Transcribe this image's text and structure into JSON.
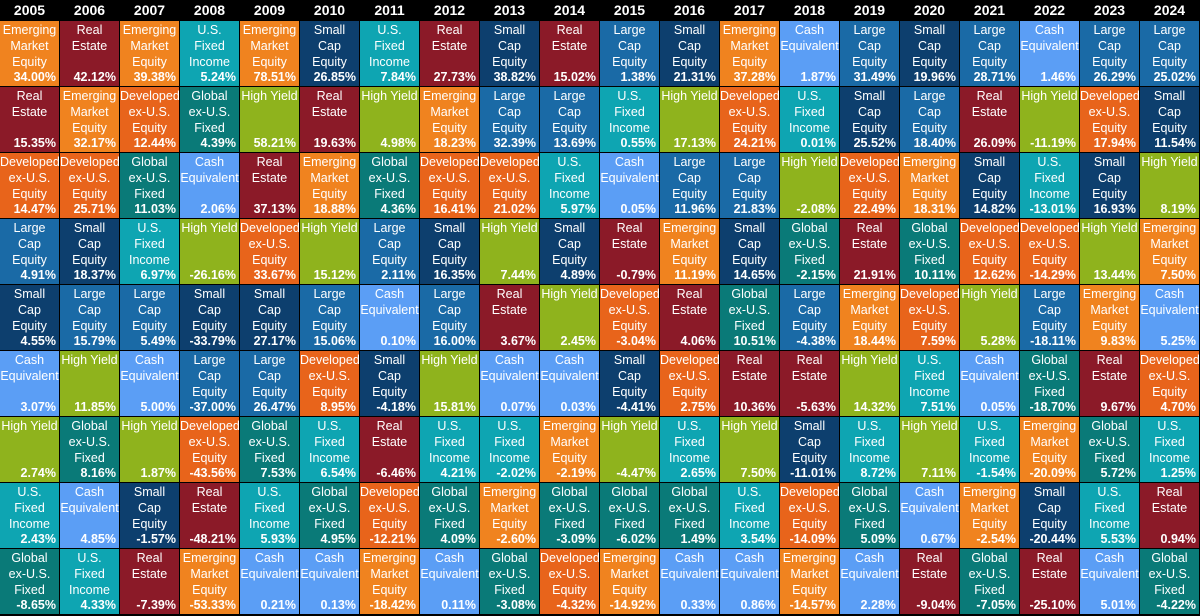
{
  "colors": {
    "Emerging Market Equity": "#f0831f",
    "Real Estate": "#8b1a28",
    "U.S. Fixed Income": "#0ea5b2",
    "Small Cap Equity": "#0d3f6e",
    "Large Cap Equity": "#1a6aa6",
    "Developed ex-U.S. Equity": "#e8641b",
    "Global ex-U.S. Fixed": "#0a7a78",
    "High Yield": "#8fb31d",
    "Cash Equivalent": "#5b9ef5"
  },
  "labels": {
    "Emerging Market Equity": "Emerging\nMarket\nEquity",
    "Real Estate": "Real\nEstate",
    "U.S. Fixed Income": "U.S.\nFixed\nIncome",
    "Small Cap Equity": "Small\nCap\nEquity",
    "Large Cap Equity": "Large\nCap\nEquity",
    "Developed ex-U.S. Equity": "Developed\nex-U.S.\nEquity",
    "Global ex-U.S. Fixed": "Global\nex-U.S.\nFixed",
    "High Yield": "High Yield",
    "Cash Equivalent": "Cash\nEquivalent"
  },
  "chart_data": {
    "type": "table",
    "years": [
      {
        "year": "2005",
        "cells": [
          {
            "asset": "Emerging Market Equity",
            "value": "34.00%"
          },
          {
            "asset": "Real Estate",
            "value": "15.35%"
          },
          {
            "asset": "Developed ex-U.S. Equity",
            "value": "14.47%"
          },
          {
            "asset": "Large Cap Equity",
            "value": "4.91%"
          },
          {
            "asset": "Small Cap Equity",
            "value": "4.55%"
          },
          {
            "asset": "Cash Equivalent",
            "value": "3.07%"
          },
          {
            "asset": "High Yield",
            "value": "2.74%"
          },
          {
            "asset": "U.S. Fixed Income",
            "value": "2.43%"
          },
          {
            "asset": "Global ex-U.S. Fixed",
            "value": "-8.65%"
          }
        ]
      },
      {
        "year": "2006",
        "cells": [
          {
            "asset": "Real Estate",
            "value": "42.12%"
          },
          {
            "asset": "Emerging Market Equity",
            "value": "32.17%"
          },
          {
            "asset": "Developed ex-U.S. Equity",
            "value": "25.71%"
          },
          {
            "asset": "Small Cap Equity",
            "value": "18.37%"
          },
          {
            "asset": "Large Cap Equity",
            "value": "15.79%"
          },
          {
            "asset": "High Yield",
            "value": "11.85%"
          },
          {
            "asset": "Global ex-U.S. Fixed",
            "value": "8.16%"
          },
          {
            "asset": "Cash Equivalent",
            "value": "4.85%"
          },
          {
            "asset": "U.S. Fixed Income",
            "value": "4.33%"
          }
        ]
      },
      {
        "year": "2007",
        "cells": [
          {
            "asset": "Emerging Market Equity",
            "value": "39.38%"
          },
          {
            "asset": "Developed ex-U.S. Equity",
            "value": "12.44%"
          },
          {
            "asset": "Global ex-U.S. Fixed",
            "value": "11.03%"
          },
          {
            "asset": "U.S. Fixed Income",
            "value": "6.97%"
          },
          {
            "asset": "Large Cap Equity",
            "value": "5.49%"
          },
          {
            "asset": "Cash Equivalent",
            "value": "5.00%"
          },
          {
            "asset": "High Yield",
            "value": "1.87%"
          },
          {
            "asset": "Small Cap Equity",
            "value": "-1.57%"
          },
          {
            "asset": "Real Estate",
            "value": "-7.39%"
          }
        ]
      },
      {
        "year": "2008",
        "cells": [
          {
            "asset": "U.S. Fixed Income",
            "value": "5.24%"
          },
          {
            "asset": "Global ex-U.S. Fixed",
            "value": "4.39%"
          },
          {
            "asset": "Cash Equivalent",
            "value": "2.06%"
          },
          {
            "asset": "High Yield",
            "value": "-26.16%"
          },
          {
            "asset": "Small Cap Equity",
            "value": "-33.79%"
          },
          {
            "asset": "Large Cap Equity",
            "value": "-37.00%"
          },
          {
            "asset": "Developed ex-U.S. Equity",
            "value": "-43.56%"
          },
          {
            "asset": "Real Estate",
            "value": "-48.21%"
          },
          {
            "asset": "Emerging Market Equity",
            "value": "-53.33%"
          }
        ]
      },
      {
        "year": "2009",
        "cells": [
          {
            "asset": "Emerging Market Equity",
            "value": "78.51%"
          },
          {
            "asset": "High Yield",
            "value": "58.21%"
          },
          {
            "asset": "Real Estate",
            "value": "37.13%"
          },
          {
            "asset": "Developed ex-U.S. Equity",
            "value": "33.67%"
          },
          {
            "asset": "Small Cap Equity",
            "value": "27.17%"
          },
          {
            "asset": "Large Cap Equity",
            "value": "26.47%"
          },
          {
            "asset": "Global ex-U.S. Fixed",
            "value": "7.53%"
          },
          {
            "asset": "U.S. Fixed Income",
            "value": "5.93%"
          },
          {
            "asset": "Cash Equivalent",
            "value": "0.21%"
          }
        ]
      },
      {
        "year": "2010",
        "cells": [
          {
            "asset": "Small Cap Equity",
            "value": "26.85%"
          },
          {
            "asset": "Real Estate",
            "value": "19.63%"
          },
          {
            "asset": "Emerging Market Equity",
            "value": "18.88%"
          },
          {
            "asset": "High Yield",
            "value": "15.12%"
          },
          {
            "asset": "Large Cap Equity",
            "value": "15.06%"
          },
          {
            "asset": "Developed ex-U.S. Equity",
            "value": "8.95%"
          },
          {
            "asset": "U.S. Fixed Income",
            "value": "6.54%"
          },
          {
            "asset": "Global ex-U.S. Fixed",
            "value": "4.95%"
          },
          {
            "asset": "Cash Equivalent",
            "value": "0.13%"
          }
        ]
      },
      {
        "year": "2011",
        "cells": [
          {
            "asset": "U.S. Fixed Income",
            "value": "7.84%"
          },
          {
            "asset": "High Yield",
            "value": "4.98%"
          },
          {
            "asset": "Global ex-U.S. Fixed",
            "value": "4.36%"
          },
          {
            "asset": "Large Cap Equity",
            "value": "2.11%"
          },
          {
            "asset": "Cash Equivalent",
            "value": "0.10%"
          },
          {
            "asset": "Small Cap Equity",
            "value": "-4.18%"
          },
          {
            "asset": "Real Estate",
            "value": "-6.46%"
          },
          {
            "asset": "Developed ex-U.S. Equity",
            "value": "-12.21%"
          },
          {
            "asset": "Emerging Market Equity",
            "value": "-18.42%"
          }
        ]
      },
      {
        "year": "2012",
        "cells": [
          {
            "asset": "Real Estate",
            "value": "27.73%"
          },
          {
            "asset": "Emerging Market Equity",
            "value": "18.23%"
          },
          {
            "asset": "Developed ex-U.S. Equity",
            "value": "16.41%"
          },
          {
            "asset": "Small Cap Equity",
            "value": "16.35%"
          },
          {
            "asset": "Large Cap Equity",
            "value": "16.00%"
          },
          {
            "asset": "High Yield",
            "value": "15.81%"
          },
          {
            "asset": "U.S. Fixed Income",
            "value": "4.21%"
          },
          {
            "asset": "Global ex-U.S. Fixed",
            "value": "4.09%"
          },
          {
            "asset": "Cash Equivalent",
            "value": "0.11%"
          }
        ]
      },
      {
        "year": "2013",
        "cells": [
          {
            "asset": "Small Cap Equity",
            "value": "38.82%"
          },
          {
            "asset": "Large Cap Equity",
            "value": "32.39%"
          },
          {
            "asset": "Developed ex-U.S. Equity",
            "value": "21.02%"
          },
          {
            "asset": "High Yield",
            "value": "7.44%"
          },
          {
            "asset": "Real Estate",
            "value": "3.67%"
          },
          {
            "asset": "Cash Equivalent",
            "value": "0.07%"
          },
          {
            "asset": "U.S. Fixed Income",
            "value": "-2.02%"
          },
          {
            "asset": "Emerging Market Equity",
            "value": "-2.60%"
          },
          {
            "asset": "Global ex-U.S. Fixed",
            "value": "-3.08%"
          }
        ]
      },
      {
        "year": "2014",
        "cells": [
          {
            "asset": "Real Estate",
            "value": "15.02%"
          },
          {
            "asset": "Large Cap Equity",
            "value": "13.69%"
          },
          {
            "asset": "U.S. Fixed Income",
            "value": "5.97%"
          },
          {
            "asset": "Small Cap Equity",
            "value": "4.89%"
          },
          {
            "asset": "High Yield",
            "value": "2.45%"
          },
          {
            "asset": "Cash Equivalent",
            "value": "0.03%"
          },
          {
            "asset": "Emerging Market Equity",
            "value": "-2.19%"
          },
          {
            "asset": "Global ex-U.S. Fixed",
            "value": "-3.09%"
          },
          {
            "asset": "Developed ex-U.S. Equity",
            "value": "-4.32%"
          }
        ]
      },
      {
        "year": "2015",
        "cells": [
          {
            "asset": "Large Cap Equity",
            "value": "1.38%"
          },
          {
            "asset": "U.S. Fixed Income",
            "value": "0.55%"
          },
          {
            "asset": "Cash Equivalent",
            "value": "0.05%"
          },
          {
            "asset": "Real Estate",
            "value": "-0.79%"
          },
          {
            "asset": "Developed ex-U.S. Equity",
            "value": "-3.04%"
          },
          {
            "asset": "Small Cap Equity",
            "value": "-4.41%"
          },
          {
            "asset": "High Yield",
            "value": "-4.47%"
          },
          {
            "asset": "Global ex-U.S. Fixed",
            "value": "-6.02%"
          },
          {
            "asset": "Emerging Market Equity",
            "value": "-14.92%"
          }
        ]
      },
      {
        "year": "2016",
        "cells": [
          {
            "asset": "Small Cap Equity",
            "value": "21.31%"
          },
          {
            "asset": "High Yield",
            "value": "17.13%"
          },
          {
            "asset": "Large Cap Equity",
            "value": "11.96%"
          },
          {
            "asset": "Emerging Market Equity",
            "value": "11.19%"
          },
          {
            "asset": "Real Estate",
            "value": "4.06%"
          },
          {
            "asset": "Developed ex-U.S. Equity",
            "value": "2.75%"
          },
          {
            "asset": "U.S. Fixed Income",
            "value": "2.65%"
          },
          {
            "asset": "Global ex-U.S. Fixed",
            "value": "1.49%"
          },
          {
            "asset": "Cash Equivalent",
            "value": "0.33%"
          }
        ]
      },
      {
        "year": "2017",
        "cells": [
          {
            "asset": "Emerging Market Equity",
            "value": "37.28%"
          },
          {
            "asset": "Developed ex-U.S. Equity",
            "value": "24.21%"
          },
          {
            "asset": "Large Cap Equity",
            "value": "21.83%"
          },
          {
            "asset": "Small Cap Equity",
            "value": "14.65%"
          },
          {
            "asset": "Global ex-U.S. Fixed",
            "value": "10.51%"
          },
          {
            "asset": "Real Estate",
            "value": "10.36%"
          },
          {
            "asset": "High Yield",
            "value": "7.50%"
          },
          {
            "asset": "U.S. Fixed Income",
            "value": "3.54%"
          },
          {
            "asset": "Cash Equivalent",
            "value": "0.86%"
          }
        ]
      },
      {
        "year": "2018",
        "cells": [
          {
            "asset": "Cash Equivalent",
            "value": "1.87%"
          },
          {
            "asset": "U.S. Fixed Income",
            "value": "0.01%"
          },
          {
            "asset": "High Yield",
            "value": "-2.08%"
          },
          {
            "asset": "Global ex-U.S. Fixed",
            "value": "-2.15%"
          },
          {
            "asset": "Large Cap Equity",
            "value": "-4.38%"
          },
          {
            "asset": "Real Estate",
            "value": "-5.63%"
          },
          {
            "asset": "Small Cap Equity",
            "value": "-11.01%"
          },
          {
            "asset": "Developed ex-U.S. Equity",
            "value": "-14.09%"
          },
          {
            "asset": "Emerging Market Equity",
            "value": "-14.57%"
          }
        ]
      },
      {
        "year": "2019",
        "cells": [
          {
            "asset": "Large Cap Equity",
            "value": "31.49%"
          },
          {
            "asset": "Small Cap Equity",
            "value": "25.52%"
          },
          {
            "asset": "Developed ex-U.S. Equity",
            "value": "22.49%"
          },
          {
            "asset": "Real Estate",
            "value": "21.91%"
          },
          {
            "asset": "Emerging Market Equity",
            "value": "18.44%"
          },
          {
            "asset": "High Yield",
            "value": "14.32%"
          },
          {
            "asset": "U.S. Fixed Income",
            "value": "8.72%"
          },
          {
            "asset": "Global ex-U.S. Fixed",
            "value": "5.09%"
          },
          {
            "asset": "Cash Equivalent",
            "value": "2.28%"
          }
        ]
      },
      {
        "year": "2020",
        "cells": [
          {
            "asset": "Small Cap Equity",
            "value": "19.96%"
          },
          {
            "asset": "Large Cap Equity",
            "value": "18.40%"
          },
          {
            "asset": "Emerging Market Equity",
            "value": "18.31%"
          },
          {
            "asset": "Global ex-U.S. Fixed",
            "value": "10.11%"
          },
          {
            "asset": "Developed ex-U.S. Equity",
            "value": "7.59%"
          },
          {
            "asset": "U.S. Fixed Income",
            "value": "7.51%"
          },
          {
            "asset": "High Yield",
            "value": "7.11%"
          },
          {
            "asset": "Cash Equivalent",
            "value": "0.67%"
          },
          {
            "asset": "Real Estate",
            "value": "-9.04%"
          }
        ]
      },
      {
        "year": "2021",
        "cells": [
          {
            "asset": "Large Cap Equity",
            "value": "28.71%"
          },
          {
            "asset": "Real Estate",
            "value": "26.09%"
          },
          {
            "asset": "Small Cap Equity",
            "value": "14.82%"
          },
          {
            "asset": "Developed ex-U.S. Equity",
            "value": "12.62%"
          },
          {
            "asset": "High Yield",
            "value": "5.28%"
          },
          {
            "asset": "Cash Equivalent",
            "value": "0.05%"
          },
          {
            "asset": "U.S. Fixed Income",
            "value": "-1.54%"
          },
          {
            "asset": "Emerging Market Equity",
            "value": "-2.54%"
          },
          {
            "asset": "Global ex-U.S. Fixed",
            "value": "-7.05%"
          }
        ]
      },
      {
        "year": "2022",
        "cells": [
          {
            "asset": "Cash Equivalent",
            "value": "1.46%"
          },
          {
            "asset": "High Yield",
            "value": "-11.19%"
          },
          {
            "asset": "U.S. Fixed Income",
            "value": "-13.01%"
          },
          {
            "asset": "Developed ex-U.S. Equity",
            "value": "-14.29%"
          },
          {
            "asset": "Large Cap Equity",
            "value": "-18.11%"
          },
          {
            "asset": "Global ex-U.S. Fixed",
            "value": "-18.70%"
          },
          {
            "asset": "Emerging Market Equity",
            "value": "-20.09%"
          },
          {
            "asset": "Small Cap Equity",
            "value": "-20.44%"
          },
          {
            "asset": "Real Estate",
            "value": "-25.10%"
          }
        ]
      },
      {
        "year": "2023",
        "cells": [
          {
            "asset": "Large Cap Equity",
            "value": "26.29%"
          },
          {
            "asset": "Developed ex-U.S. Equity",
            "value": "17.94%"
          },
          {
            "asset": "Small Cap Equity",
            "value": "16.93%"
          },
          {
            "asset": "High Yield",
            "value": "13.44%"
          },
          {
            "asset": "Emerging Market Equity",
            "value": "9.83%"
          },
          {
            "asset": "Real Estate",
            "value": "9.67%"
          },
          {
            "asset": "Global ex-U.S. Fixed",
            "value": "5.72%"
          },
          {
            "asset": "U.S. Fixed Income",
            "value": "5.53%"
          },
          {
            "asset": "Cash Equivalent",
            "value": "5.01%"
          }
        ]
      },
      {
        "year": "2024",
        "cells": [
          {
            "asset": "Large Cap Equity",
            "value": "25.02%"
          },
          {
            "asset": "Small Cap Equity",
            "value": "11.54%"
          },
          {
            "asset": "High Yield",
            "value": "8.19%"
          },
          {
            "asset": "Emerging Market Equity",
            "value": "7.50%"
          },
          {
            "asset": "Cash Equivalent",
            "value": "5.25%"
          },
          {
            "asset": "Developed ex-U.S. Equity",
            "value": "4.70%"
          },
          {
            "asset": "U.S. Fixed Income",
            "value": "1.25%"
          },
          {
            "asset": "Real Estate",
            "value": "0.94%"
          },
          {
            "asset": "Global ex-U.S. Fixed",
            "value": "-4.22%"
          }
        ]
      }
    ]
  }
}
